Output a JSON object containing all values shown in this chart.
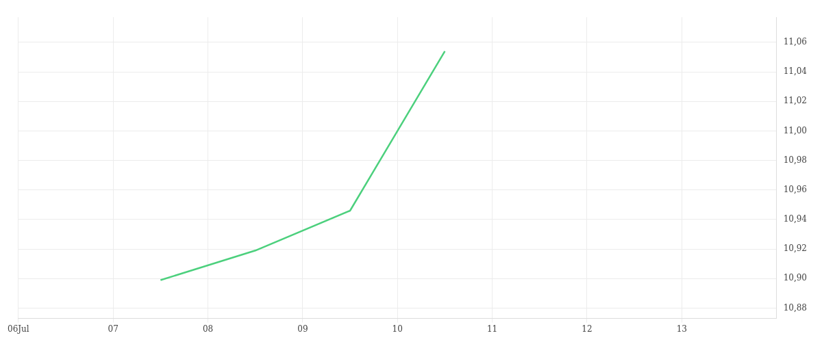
{
  "chart_data": {
    "type": "line",
    "x": [
      "--07-07T12:00",
      "--07-08T12:00",
      "--07-09T12:00",
      "--07-10T12:00"
    ],
    "series": [
      {
        "color": "#4cd07d",
        "values": [
          10.899,
          10.919,
          10.946,
          11.054
        ]
      }
    ],
    "xlim": [
      "--07-06",
      "--07-14"
    ],
    "xticks": [
      {
        "value": "--07-06",
        "label": "06Jul"
      },
      {
        "value": "--07-07",
        "label": "07"
      },
      {
        "value": "--07-08",
        "label": "08"
      },
      {
        "value": "--07-09",
        "label": "09"
      },
      {
        "value": "--07-10",
        "label": "10"
      },
      {
        "value": "--07-11",
        "label": "11"
      },
      {
        "value": "--07-12",
        "label": "12"
      },
      {
        "value": "--07-13",
        "label": "13"
      }
    ],
    "ylim": [
      10.873,
      11.077
    ],
    "yticks": [
      {
        "value": 10.88,
        "label": "10,88"
      },
      {
        "value": 10.9,
        "label": "10,90"
      },
      {
        "value": 10.92,
        "label": "10,92"
      },
      {
        "value": 10.94,
        "label": "10,94"
      },
      {
        "value": 10.96,
        "label": "10,96"
      },
      {
        "value": 10.98,
        "label": "10,98"
      },
      {
        "value": 11.0,
        "label": "11,00"
      },
      {
        "value": 11.02,
        "label": "11,02"
      },
      {
        "value": 11.04,
        "label": "11,04"
      },
      {
        "value": 11.06,
        "label": "11,06"
      }
    ],
    "grid": true,
    "legend": false,
    "marker": "none",
    "line_style": "solid"
  }
}
